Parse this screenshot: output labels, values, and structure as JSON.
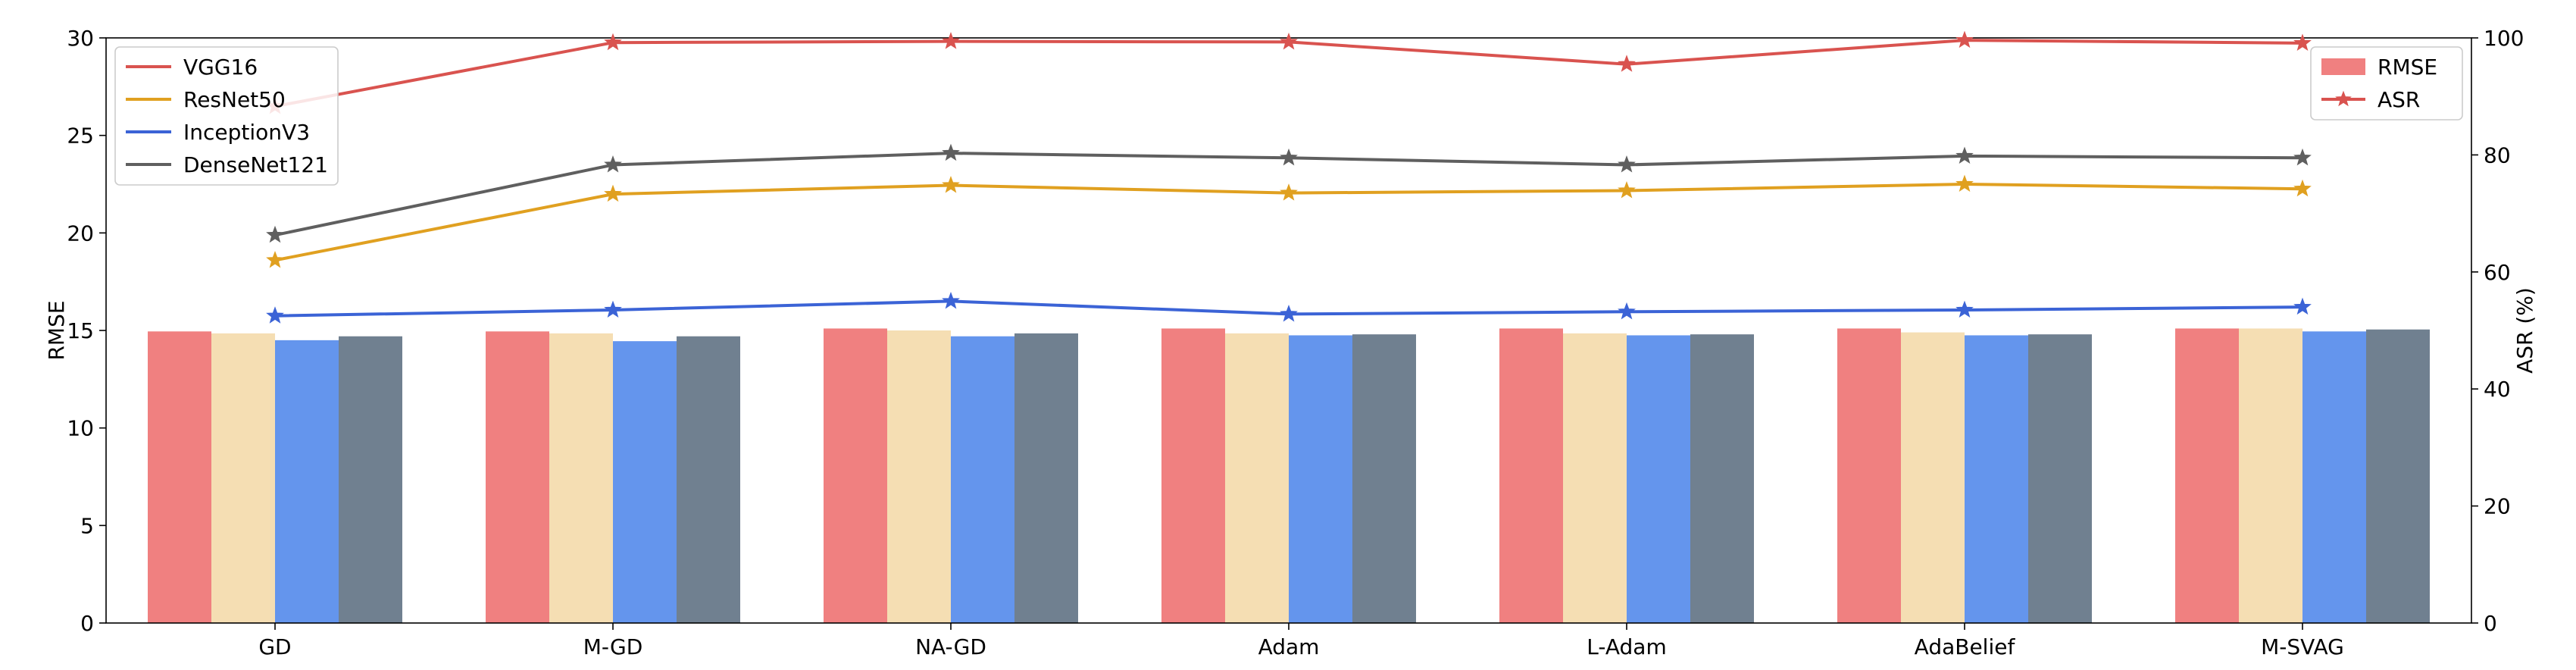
{
  "chart_data": {
    "type": "bar",
    "categories": [
      "GD",
      "M-GD",
      "NA-GD",
      "Adam",
      "L-Adam",
      "AdaBelief",
      "M-SVAG"
    ],
    "ylabel": "RMSE",
    "y2label": "ASR (%)",
    "ylim": [
      0,
      30
    ],
    "y2lim": [
      0,
      100
    ],
    "yticks": [
      0,
      5,
      10,
      15,
      20,
      25,
      30
    ],
    "y2ticks": [
      0,
      20,
      40,
      60,
      80,
      100
    ],
    "bar_series": [
      {
        "name": "VGG16",
        "color": "#f08080",
        "values": [
          14.95,
          14.95,
          15.1,
          15.1,
          15.1,
          15.1,
          15.1
        ]
      },
      {
        "name": "ResNet50",
        "color": "#f5deb3",
        "values": [
          14.85,
          14.85,
          15.0,
          14.85,
          14.85,
          14.9,
          15.1
        ]
      },
      {
        "name": "InceptionV3",
        "color": "#6495ed",
        "values": [
          14.5,
          14.45,
          14.7,
          14.75,
          14.75,
          14.75,
          14.95
        ]
      },
      {
        "name": "DenseNet121",
        "color": "#708090",
        "values": [
          14.7,
          14.7,
          14.85,
          14.8,
          14.8,
          14.8,
          15.05
        ]
      }
    ],
    "line_series": [
      {
        "name": "VGG16",
        "color": "#d9534f",
        "values": [
          88.3,
          99.2,
          99.4,
          99.3,
          95.5,
          99.6,
          99.1
        ]
      },
      {
        "name": "ResNet50",
        "color": "#e0a020",
        "values": [
          62.0,
          73.3,
          74.8,
          73.5,
          73.9,
          75.0,
          74.2
        ]
      },
      {
        "name": "InceptionV3",
        "color": "#3b63d6",
        "values": [
          52.5,
          53.5,
          55.0,
          52.8,
          53.2,
          53.5,
          54.0
        ]
      },
      {
        "name": "DenseNet121",
        "color": "#5f5f5f",
        "values": [
          66.3,
          78.3,
          80.3,
          79.5,
          78.3,
          79.8,
          79.5
        ]
      }
    ],
    "legend_left": {
      "position": "top-left",
      "entries": [
        "VGG16",
        "ResNet50",
        "InceptionV3",
        "DenseNet121"
      ]
    },
    "legend_right": {
      "position": "top-right",
      "entries": [
        {
          "label": "RMSE",
          "kind": "bar",
          "color": "#f08080"
        },
        {
          "label": "ASR",
          "kind": "line",
          "color": "#d9534f"
        }
      ]
    }
  }
}
